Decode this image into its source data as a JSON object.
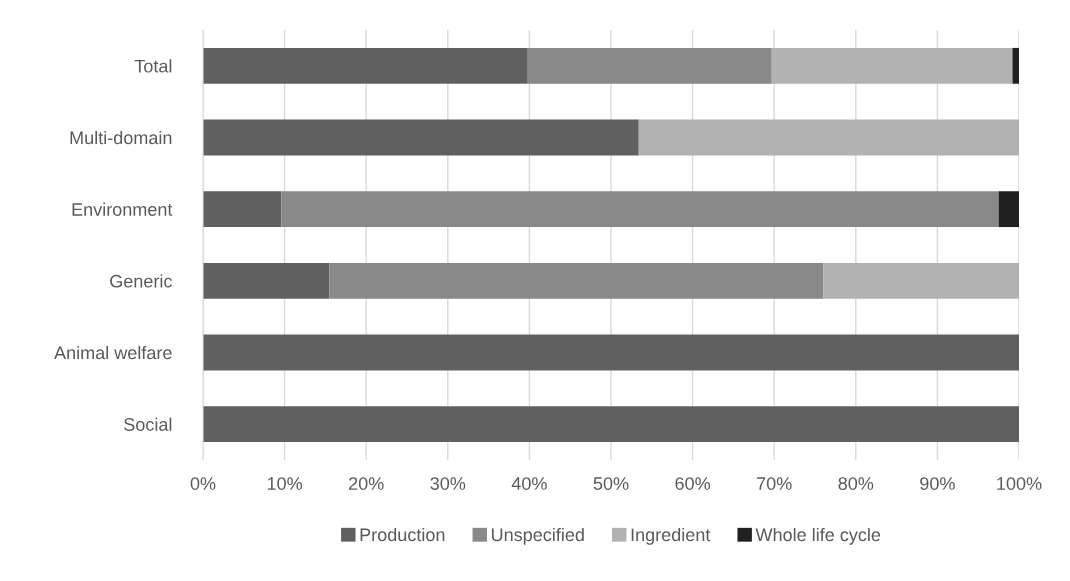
{
  "chart_data": {
    "type": "bar",
    "orientation": "horizontal",
    "stacked": true,
    "categories": [
      "Total",
      "Multi-domain",
      "Environment",
      "Generic",
      "Animal welfare",
      "Social"
    ],
    "series": [
      {
        "name": "Production",
        "color": "#606060",
        "values": [
          39.8,
          53.4,
          9.6,
          15.5,
          100,
          100
        ]
      },
      {
        "name": "Unspecified",
        "color": "#898989",
        "values": [
          29.9,
          0,
          87.9,
          60.5,
          0,
          0
        ]
      },
      {
        "name": "Ingredient",
        "color": "#b2b2b2",
        "values": [
          29.5,
          46.6,
          0,
          24.0,
          0,
          0
        ]
      },
      {
        "name": "Whole life cycle",
        "color": "#202020",
        "values": [
          0.8,
          0,
          2.5,
          0,
          0,
          0
        ]
      }
    ],
    "xlim": [
      0,
      100
    ],
    "xticks": [
      {
        "value": 0,
        "label": "0%"
      },
      {
        "value": 10,
        "label": "10%"
      },
      {
        "value": 20,
        "label": "20%"
      },
      {
        "value": 30,
        "label": "30%"
      },
      {
        "value": 40,
        "label": "40%"
      },
      {
        "value": 50,
        "label": "50%"
      },
      {
        "value": 60,
        "label": "60%"
      },
      {
        "value": 70,
        "label": "70%"
      },
      {
        "value": 80,
        "label": "80%"
      },
      {
        "value": 90,
        "label": "90%"
      },
      {
        "value": 100,
        "label": "100%"
      }
    ],
    "grid": "x",
    "legend": "bottom"
  }
}
